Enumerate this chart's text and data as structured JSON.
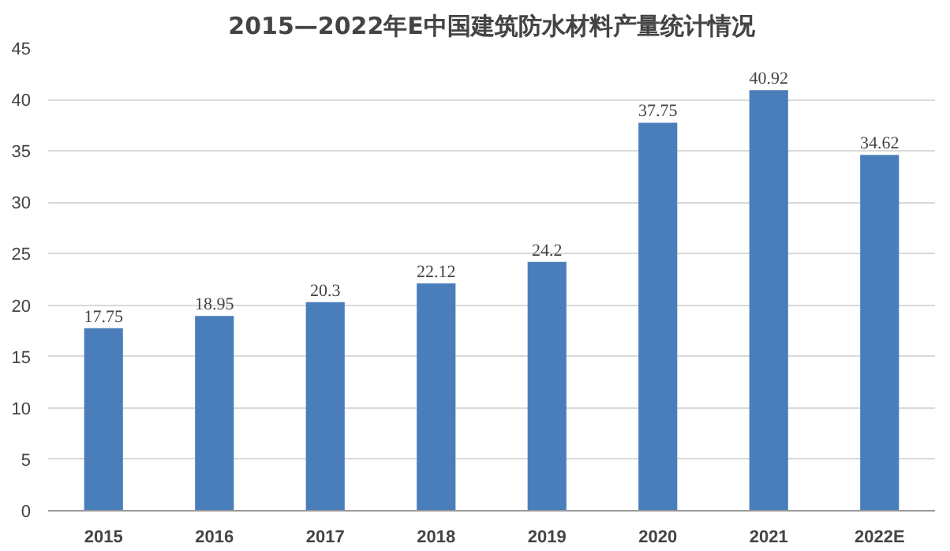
{
  "chart_data": {
    "type": "bar",
    "title": "2015—2022年E中国建筑防水材料产量统计情况",
    "categories": [
      "2015",
      "2016",
      "2017",
      "2018",
      "2019",
      "2020",
      "2021",
      "2022E"
    ],
    "values": [
      17.75,
      18.95,
      20.3,
      22.12,
      24.2,
      37.75,
      40.92,
      34.62
    ],
    "color": "#4a7ebb",
    "data_labels": true,
    "grid": "y",
    "ylim": [
      0,
      45
    ],
    "yticks": [
      0,
      5,
      10,
      15,
      20,
      25,
      30,
      35,
      40,
      45
    ]
  }
}
